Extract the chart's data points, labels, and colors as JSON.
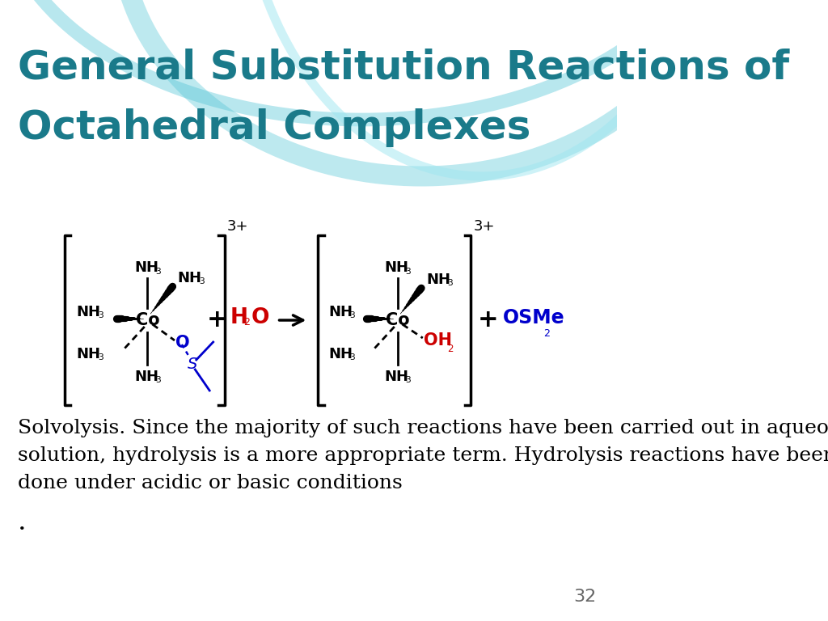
{
  "title_line1": "General Substitution Reactions of",
  "title_line2": "Octahedral Complexes",
  "title_color": "#1a7a8a",
  "title_fontsize": 36,
  "title_weight": "bold",
  "slide_bg": "#ffffff",
  "body_text": "Solvolysis. Since the majority of such reactions have been carried out in aqueous\nsolution, hydrolysis is a more appropriate term. Hydrolysis reactions have been\ndone under acidic or basic conditions",
  "body_fontsize": 18,
  "page_number": "32",
  "reaction_plus_color": "#cc0000",
  "osme2_color": "#0000cc",
  "oh2_color": "#cc0000",
  "o_color": "#0000cc",
  "s_color": "#0000cc"
}
